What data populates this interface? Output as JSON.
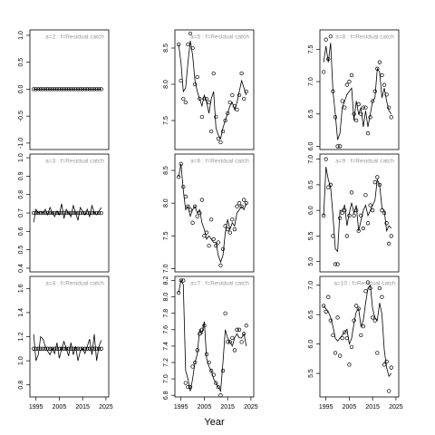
{
  "chart_data": [
    {
      "type": "line",
      "title": "a=2  :  f=Residual catch",
      "xlim": [
        1992.4,
        2026.2
      ],
      "ylim": [
        -1.12,
        1.1
      ],
      "yticks": [
        {
          "value": -1,
          "label": "-1.0"
        },
        -0.5,
        {
          "value": 0,
          "label": "0.0"
        },
        0.5,
        {
          "value": 1,
          "label": "1.0"
        }
      ],
      "x": [
        1994,
        1995,
        1996,
        1997,
        1998,
        1999,
        2000,
        2001,
        2002,
        2003,
        2004,
        2005,
        2006,
        2007,
        2008,
        2009,
        2010,
        2011,
        2012,
        2013,
        2014,
        2015,
        2016,
        2017,
        2018,
        2019,
        2020,
        2021,
        2022,
        2023
      ],
      "observed": [
        0,
        0,
        0,
        0,
        0,
        0,
        0,
        0,
        0,
        0,
        0,
        0,
        0,
        0,
        0,
        0,
        0,
        0,
        0,
        0,
        0,
        0,
        0,
        0,
        0,
        0,
        0,
        0,
        0,
        0
      ],
      "fitted": [
        0,
        0,
        0,
        0,
        0,
        0,
        0,
        0,
        0,
        0,
        0,
        0,
        0,
        0,
        0,
        0,
        0,
        0,
        0,
        0,
        0,
        0,
        0,
        0,
        0,
        0,
        0,
        0,
        0,
        0
      ]
    },
    {
      "type": "line",
      "title": "a=3  :  f=Residual catch",
      "xlim": [
        1992.4,
        2026.2
      ],
      "ylim": [
        0.38,
        1.02
      ],
      "yticks": [
        0.4,
        0.5,
        0.6,
        0.7,
        0.8,
        0.9,
        {
          "value": 1,
          "label": "1.0"
        }
      ],
      "x": [
        1994,
        1995,
        1996,
        1997,
        1998,
        1999,
        2000,
        2001,
        2002,
        2003,
        2004,
        2005,
        2006,
        2007,
        2008,
        2009,
        2010,
        2011,
        2012,
        2013,
        2014,
        2015,
        2016,
        2017,
        2018,
        2019,
        2020,
        2021,
        2022,
        2023
      ],
      "observed": [
        0.7,
        0.7,
        0.7,
        0.7,
        0.7,
        0.7,
        0.7,
        0.7,
        0.7,
        0.7,
        0.7,
        0.7,
        0.7,
        0.7,
        0.7,
        0.7,
        0.7,
        0.7,
        0.7,
        0.7,
        0.7,
        0.7,
        0.7,
        0.7,
        0.7,
        0.7,
        0.7,
        0.7,
        0.7,
        0.7
      ],
      "fitted": [
        0.65,
        0.72,
        0.7,
        0.71,
        0.7,
        0.72,
        0.69,
        0.73,
        0.7,
        0.68,
        0.71,
        0.69,
        0.75,
        0.67,
        0.72,
        0.7,
        0.68,
        0.74,
        0.7,
        0.66,
        0.73,
        0.71,
        0.69,
        0.72,
        0.68,
        0.74,
        0.7,
        0.69,
        0.71,
        0.73
      ]
    },
    {
      "type": "line",
      "title": "a=4  :  f=Residual catch",
      "xlim": [
        1992.4,
        2026.2
      ],
      "ylim": [
        0.7,
        1.7
      ],
      "yticks": [
        0.8,
        {
          "value": 1,
          "label": "1.0"
        },
        1.2,
        1.4,
        1.6
      ],
      "xticks": [
        1995,
        2005,
        2015,
        2025
      ],
      "x": [
        1994,
        1995,
        1996,
        1997,
        1998,
        1999,
        2000,
        2001,
        2002,
        2003,
        2004,
        2005,
        2006,
        2007,
        2008,
        2009,
        2010,
        2011,
        2012,
        2013,
        2014,
        2015,
        2016,
        2017,
        2018,
        2019,
        2020,
        2021,
        2022,
        2023
      ],
      "observed": [
        1.1,
        1.1,
        1.1,
        1.1,
        1.1,
        1.1,
        1.1,
        1.1,
        1.1,
        1.1,
        1.1,
        1.1,
        1.1,
        1.1,
        1.1,
        1.1,
        1.1,
        1.1,
        1.1,
        1.1,
        1.1,
        1.1,
        1.1,
        1.1,
        1.1,
        1.1,
        1.1,
        1.1,
        1.1,
        1.1
      ],
      "fitted": [
        1.22,
        1.0,
        1.05,
        1.2,
        1.18,
        1.12,
        1.08,
        1.05,
        1.1,
        1.06,
        1.15,
        1.02,
        1.1,
        1.16,
        1.1,
        1.04,
        1.15,
        1.05,
        1.12,
        1.0,
        1.08,
        1.1,
        1.06,
        1.12,
        1.18,
        1.05,
        1.22,
        1.0,
        1.12,
        1.17
      ]
    },
    {
      "type": "line",
      "title": "a=5  :  f=Residual catch",
      "xlim": [
        1992.4,
        2026.2
      ],
      "ylim": [
        7.1,
        8.75
      ],
      "yticks": [
        7.5,
        {
          "value": 8,
          "label": "8.0"
        },
        8.5
      ],
      "x": [
        1994,
        1995,
        1996,
        1997,
        1998,
        1999,
        2000,
        2001,
        2002,
        2003,
        2004,
        2005,
        2006,
        2007,
        2008,
        2009,
        2010,
        2011,
        2012,
        2013,
        2014,
        2015,
        2016,
        2017,
        2018,
        2019,
        2020,
        2021,
        2022,
        2023
      ],
      "observed": [
        8.55,
        8.05,
        7.8,
        7.75,
        8.55,
        8.7,
        8.5,
        8.0,
        8.1,
        7.8,
        7.55,
        7.8,
        7.8,
        7.75,
        7.35,
        8.15,
        7.55,
        7.25,
        7.2,
        7.35,
        7.5,
        7.6,
        7.75,
        7.85,
        7.7,
        7.65,
        7.85,
        8.15,
        7.8,
        7.9
      ],
      "fitted": [
        8.55,
        8.3,
        7.9,
        7.95,
        8.3,
        8.6,
        8.4,
        8.05,
        7.9,
        7.8,
        7.7,
        7.85,
        7.75,
        7.6,
        7.8,
        7.9,
        7.4,
        7.3,
        7.25,
        7.4,
        7.5,
        7.6,
        7.7,
        7.75,
        7.65,
        7.75,
        7.9,
        8.05,
        7.95,
        7.85
      ]
    },
    {
      "type": "line",
      "title": "a=6  :  f=Residual catch",
      "xlim": [
        1992.4,
        2026.2
      ],
      "ylim": [
        6.95,
        8.75
      ],
      "yticks": [
        {
          "value": 7,
          "label": "7.0"
        },
        7.5,
        {
          "value": 8,
          "label": "8.0"
        },
        8.5
      ],
      "x": [
        1994,
        1995,
        1996,
        1997,
        1998,
        1999,
        2000,
        2001,
        2002,
        2003,
        2004,
        2005,
        2006,
        2007,
        2008,
        2009,
        2010,
        2011,
        2012,
        2013,
        2014,
        2015,
        2016,
        2017,
        2018,
        2019,
        2020,
        2021,
        2022,
        2023
      ],
      "observed": [
        8.4,
        8.6,
        8.25,
        8.1,
        7.95,
        7.9,
        7.7,
        7.95,
        7.8,
        7.85,
        8.05,
        7.5,
        7.55,
        7.35,
        7.75,
        7.45,
        7.35,
        7.4,
        7.05,
        7.3,
        7.65,
        7.6,
        7.55,
        7.75,
        7.6,
        7.95,
        8.0,
        7.95,
        8.05,
        8.0
      ],
      "fitted": [
        8.4,
        8.6,
        8.2,
        7.9,
        7.95,
        7.8,
        7.9,
        7.95,
        7.85,
        7.9,
        7.7,
        7.6,
        7.45,
        7.5,
        7.45,
        7.4,
        7.4,
        7.2,
        7.1,
        7.2,
        7.55,
        7.75,
        7.6,
        7.7,
        7.65,
        7.85,
        7.9,
        7.95,
        7.9,
        8.0
      ]
    },
    {
      "type": "line",
      "title": "a=7  :  f=Residual catch",
      "xlim": [
        1992.4,
        2026.2
      ],
      "ylim": [
        6.78,
        8.25
      ],
      "yticks": [
        6.8,
        {
          "value": 7,
          "label": "7.0"
        },
        7.2,
        7.4,
        7.6,
        7.8,
        {
          "value": 8,
          "label": "8.0"
        },
        8.2
      ],
      "xticks": [
        1995,
        2005,
        2015,
        2025
      ],
      "xlabel": "Year",
      "x": [
        1994,
        1995,
        1996,
        1997,
        1998,
        1999,
        2000,
        2001,
        2002,
        2003,
        2004,
        2005,
        2006,
        2007,
        2008,
        2009,
        2010,
        2011,
        2012,
        2013,
        2014,
        2015,
        2016,
        2017,
        2018,
        2019,
        2020,
        2021,
        2022,
        2023
      ],
      "observed": [
        8.05,
        8.2,
        8.2,
        6.95,
        6.9,
        6.9,
        7.15,
        7.2,
        7.35,
        7.55,
        7.6,
        7.65,
        7.3,
        7.2,
        7.1,
        7.05,
        6.95,
        6.9,
        6.8,
        7.1,
        7.8,
        7.45,
        7.45,
        7.5,
        7.35,
        7.6,
        7.6,
        7.45,
        7.55,
        7.65
      ],
      "fitted": [
        8.05,
        8.2,
        8.15,
        7.1,
        7.0,
        6.85,
        7.0,
        7.2,
        7.3,
        7.6,
        7.55,
        7.7,
        7.25,
        7.15,
        7.1,
        7.0,
        6.95,
        6.9,
        6.85,
        7.2,
        7.6,
        7.5,
        7.45,
        7.4,
        7.5,
        7.55,
        7.5,
        7.5,
        7.55,
        7.4
      ]
    },
    {
      "type": "line",
      "title": "a=8  :  f=Residual catch",
      "xlim": [
        1992.4,
        2026.2
      ],
      "ylim": [
        5.95,
        7.8
      ],
      "yticks": [
        {
          "value": 6,
          "label": "6.0"
        },
        6.5,
        {
          "value": 7,
          "label": "7.0"
        },
        7.5
      ],
      "x": [
        1994,
        1995,
        1996,
        1997,
        1998,
        1999,
        2000,
        2001,
        2002,
        2003,
        2004,
        2005,
        2006,
        2007,
        2008,
        2009,
        2010,
        2011,
        2012,
        2013,
        2014,
        2015,
        2016,
        2017,
        2018,
        2019,
        2020,
        2021,
        2022,
        2023
      ],
      "observed": [
        7.15,
        7.65,
        7.35,
        7.7,
        6.85,
        6.45,
        6.0,
        6.0,
        6.7,
        6.6,
        6.95,
        7.0,
        7.1,
        6.5,
        6.4,
        6.65,
        6.5,
        6.6,
        6.6,
        6.2,
        6.45,
        6.7,
        6.85,
        7.2,
        7.3,
        7.1,
        6.95,
        6.8,
        6.6,
        6.45
      ],
      "fitted": [
        7.3,
        7.55,
        7.3,
        7.6,
        6.85,
        6.5,
        6.1,
        6.2,
        6.6,
        6.7,
        6.8,
        6.85,
        6.9,
        6.4,
        6.7,
        6.5,
        6.6,
        6.3,
        6.55,
        6.3,
        6.5,
        6.7,
        6.75,
        7.2,
        7.15,
        6.75,
        6.9,
        6.7,
        6.55,
        6.5
      ]
    },
    {
      "type": "line",
      "title": "a=9  :  f=Residual catch",
      "xlim": [
        1992.4,
        2026.2
      ],
      "ylim": [
        4.8,
        7.1
      ],
      "yticks": [
        {
          "value": 5,
          "label": "5.0"
        },
        5.5,
        {
          "value": 6,
          "label": "6.0"
        },
        6.5,
        {
          "value": 7,
          "label": "7.0"
        }
      ],
      "x": [
        1994,
        1995,
        1996,
        1997,
        1998,
        1999,
        2000,
        2001,
        2002,
        2003,
        2004,
        2005,
        2006,
        2007,
        2008,
        2009,
        2010,
        2011,
        2012,
        2013,
        2014,
        2015,
        2016,
        2017,
        2018,
        2019,
        2020,
        2021,
        2022,
        2023
      ],
      "observed": [
        5.9,
        7.0,
        6.45,
        6.5,
        5.5,
        4.95,
        4.95,
        5.85,
        5.95,
        6.0,
        5.5,
        5.9,
        6.35,
        5.9,
        6.0,
        5.6,
        5.9,
        5.65,
        6.3,
        5.75,
        6.1,
        6.0,
        6.55,
        6.65,
        6.5,
        6.0,
        5.95,
        5.75,
        5.35,
        5.5
      ],
      "fitted": [
        5.9,
        6.85,
        6.6,
        6.45,
        5.9,
        5.25,
        5.2,
        6.0,
        6.0,
        6.1,
        5.7,
        5.95,
        6.15,
        5.95,
        6.1,
        5.6,
        5.8,
        6.0,
        6.1,
        5.9,
        6.0,
        6.1,
        6.2,
        6.6,
        6.5,
        6.05,
        6.0,
        5.6,
        5.7,
        5.65
      ]
    },
    {
      "type": "line",
      "title": "a=10  :  f=Residual catch",
      "xlim": [
        1992.4,
        2026.2
      ],
      "ylim": [
        5.1,
        7.15
      ],
      "yticks": [
        5.5,
        {
          "value": 6,
          "label": "6.0"
        },
        6.5,
        {
          "value": 7,
          "label": "7.0"
        }
      ],
      "xticks": [
        1995,
        2005,
        2015,
        2025
      ],
      "x": [
        1994,
        1995,
        1996,
        1997,
        1998,
        1999,
        2000,
        2001,
        2002,
        2003,
        2004,
        2005,
        2006,
        2007,
        2008,
        2009,
        2010,
        2011,
        2012,
        2013,
        2014,
        2015,
        2016,
        2017,
        2018,
        2019,
        2020,
        2021,
        2022,
        2023
      ],
      "observed": [
        6.65,
        6.55,
        6.8,
        6.4,
        6.15,
        5.85,
        6.45,
        5.8,
        6.1,
        6.2,
        6.1,
        5.65,
        5.95,
        6.4,
        6.65,
        6.6,
        6.15,
        6.3,
        6.9,
        7.05,
        6.95,
        6.45,
        6.4,
        5.85,
        6.95,
        6.8,
        5.65,
        5.7,
        5.2,
        5.6
      ],
      "fitted": [
        6.65,
        6.6,
        6.55,
        6.45,
        6.3,
        6.1,
        6.05,
        6.1,
        6.15,
        6.2,
        6.25,
        6.0,
        6.1,
        6.35,
        6.55,
        6.6,
        6.3,
        6.4,
        6.7,
        6.95,
        7.0,
        6.6,
        6.45,
        6.4,
        6.7,
        6.5,
        5.9,
        5.6,
        5.45,
        5.5
      ]
    }
  ]
}
